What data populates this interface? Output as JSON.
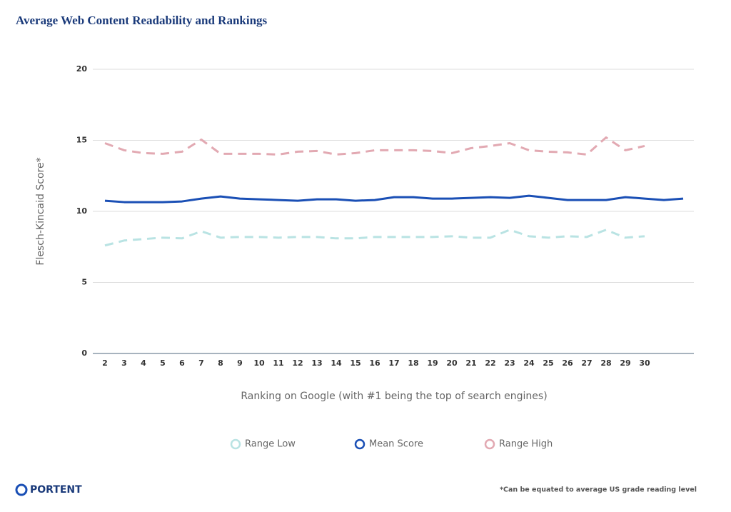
{
  "chart_data": {
    "type": "line",
    "title": "Average Web Content Readability and Rankings",
    "x_label": "Ranking on Google (with #1 being the top of search engines)",
    "y_label": "Flesch-Kincaid Score*",
    "footnote": "*Can be equated to average US grade reading level",
    "brand": "PORTENT",
    "categories": [
      "2",
      "3",
      "4",
      "5",
      "6",
      "7",
      "8",
      "9",
      "10",
      "11",
      "12",
      "13",
      "14",
      "15",
      "16",
      "17",
      "18",
      "19",
      "20",
      "21",
      "22",
      "23",
      "24",
      "25",
      "26",
      "27",
      "28",
      "29",
      "30",
      null,
      null
    ],
    "series": [
      {
        "name": "Range Low",
        "color": "#b9e3e3",
        "style": "dashed",
        "values": [
          7.6,
          7.95,
          8.05,
          8.15,
          8.1,
          8.6,
          8.15,
          8.2,
          8.2,
          8.15,
          8.2,
          8.2,
          8.1,
          8.1,
          8.2,
          8.2,
          8.2,
          8.2,
          8.25,
          8.15,
          8.15,
          8.7,
          8.25,
          8.15,
          8.25,
          8.2,
          8.7,
          8.15,
          8.25,
          null,
          null
        ]
      },
      {
        "name": "Mean Score",
        "color": "#1a4fb5",
        "style": "solid",
        "values": [
          10.75,
          10.65,
          10.65,
          10.65,
          10.7,
          10.9,
          11.05,
          10.9,
          10.85,
          10.8,
          10.75,
          10.85,
          10.85,
          10.75,
          10.8,
          11.0,
          11.0,
          10.9,
          10.9,
          10.95,
          11.0,
          10.95,
          11.1,
          10.95,
          10.8,
          10.8,
          10.8,
          11.0,
          10.9,
          10.8,
          10.9
        ]
      },
      {
        "name": "Range High",
        "color": "#e2a9b2",
        "style": "dashed",
        "values": [
          14.8,
          14.3,
          14.1,
          14.05,
          14.2,
          15.05,
          14.05,
          14.05,
          14.05,
          14.0,
          14.2,
          14.25,
          14.0,
          14.1,
          14.3,
          14.3,
          14.3,
          14.25,
          14.1,
          14.45,
          14.6,
          14.8,
          14.3,
          14.2,
          14.15,
          14.0,
          15.2,
          14.3,
          14.6,
          null,
          null
        ]
      }
    ],
    "ylim": [
      0,
      20
    ],
    "yticks": [
      0,
      5,
      10,
      15,
      20
    ],
    "grid": true,
    "legend": "bottom"
  }
}
